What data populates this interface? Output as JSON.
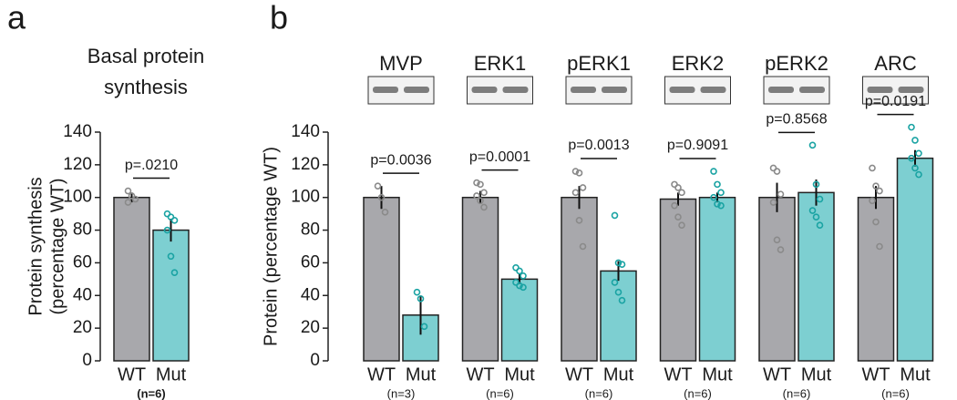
{
  "chart_data": [
    {
      "type": "bar",
      "panel_label": "a",
      "title": [
        "Basal protein",
        "synthesis"
      ],
      "y_label": [
        "Protein synthesis",
        "(percentage WT)"
      ],
      "ylim": [
        0,
        140
      ],
      "yticks": [
        0,
        20,
        40,
        60,
        80,
        100,
        120,
        140
      ],
      "colors": [
        "#a8a8ac",
        "#7dcfd1"
      ],
      "point_colors": [
        "#8a8a8a",
        "#1aa3a3"
      ],
      "categories": [
        "WT",
        "Mut"
      ],
      "values": [
        100,
        80
      ],
      "errors": [
        3,
        7
      ],
      "points": [
        [
          104,
          101,
          99,
          97
        ],
        [
          90,
          88,
          86,
          80,
          64,
          54
        ]
      ],
      "n_label": "(n=6)",
      "p_label": "p=.0210"
    },
    {
      "type": "grouped_bar",
      "panel_label": "b",
      "y_label": "Protein (percentage WT)",
      "ylim": [
        0,
        140
      ],
      "yticks": [
        0,
        20,
        40,
        60,
        80,
        100,
        120,
        140
      ],
      "colors": [
        "#a8a8ac",
        "#7dcfd1"
      ],
      "point_colors": [
        "#8a8a8a",
        "#1aa3a3"
      ],
      "groups": [
        {
          "name": "MVP",
          "categories": [
            "WT",
            "Mut"
          ],
          "values": [
            100,
            28
          ],
          "errors": [
            7,
            12
          ],
          "points": [
            [
              107,
              100,
              91
            ],
            [
              42,
              38,
              21
            ]
          ],
          "n_label": "(n=3)",
          "p_label": "p=0.0036"
        },
        {
          "name": "ERK1",
          "categories": [
            "WT",
            "Mut"
          ],
          "values": [
            100,
            50
          ],
          "errors": [
            4,
            3
          ],
          "points": [
            [
              109,
              108,
              103,
              101,
              98,
              94
            ],
            [
              57,
              55,
              52,
              48,
              46,
              45
            ]
          ],
          "n_label": "(n=6)",
          "p_label": "p=0.0001"
        },
        {
          "name": "pERK1",
          "categories": [
            "WT",
            "Mut"
          ],
          "values": [
            100,
            55
          ],
          "errors": [
            7,
            6
          ],
          "points": [
            [
              116,
              115,
              106,
              103,
              86,
              70
            ],
            [
              89,
              60,
              59,
              48,
              42,
              37
            ]
          ],
          "n_label": "(n=6)",
          "p_label": "p=0.0013"
        },
        {
          "name": "ERK2",
          "categories": [
            "WT",
            "Mut"
          ],
          "values": [
            99,
            100
          ],
          "errors": [
            4,
            3
          ],
          "points": [
            [
              108,
              106,
              103,
              95,
              88,
              83
            ],
            [
              116,
              108,
              103,
              100,
              96,
              95
            ]
          ],
          "n_label": "(n=6)",
          "p_label": "p=0.9091"
        },
        {
          "name": "pERK2",
          "categories": [
            "WT",
            "Mut"
          ],
          "values": [
            100,
            103
          ],
          "errors": [
            9,
            8
          ],
          "points": [
            [
              118,
              116,
              102,
              97,
              74,
              68
            ],
            [
              132,
              108,
              99,
              92,
              88,
              83
            ]
          ],
          "n_label": "(n=6)",
          "p_label": "p=0.8568"
        },
        {
          "name": "ARC",
          "categories": [
            "WT",
            "Mut"
          ],
          "values": [
            100,
            124
          ],
          "errors": [
            7,
            5
          ],
          "points": [
            [
              118,
              107,
              104,
              98,
              85,
              70
            ],
            [
              143,
              135,
              127,
              124,
              118,
              114
            ]
          ],
          "n_label": "(n=6)",
          "p_label": "p=0.0191"
        }
      ]
    }
  ]
}
